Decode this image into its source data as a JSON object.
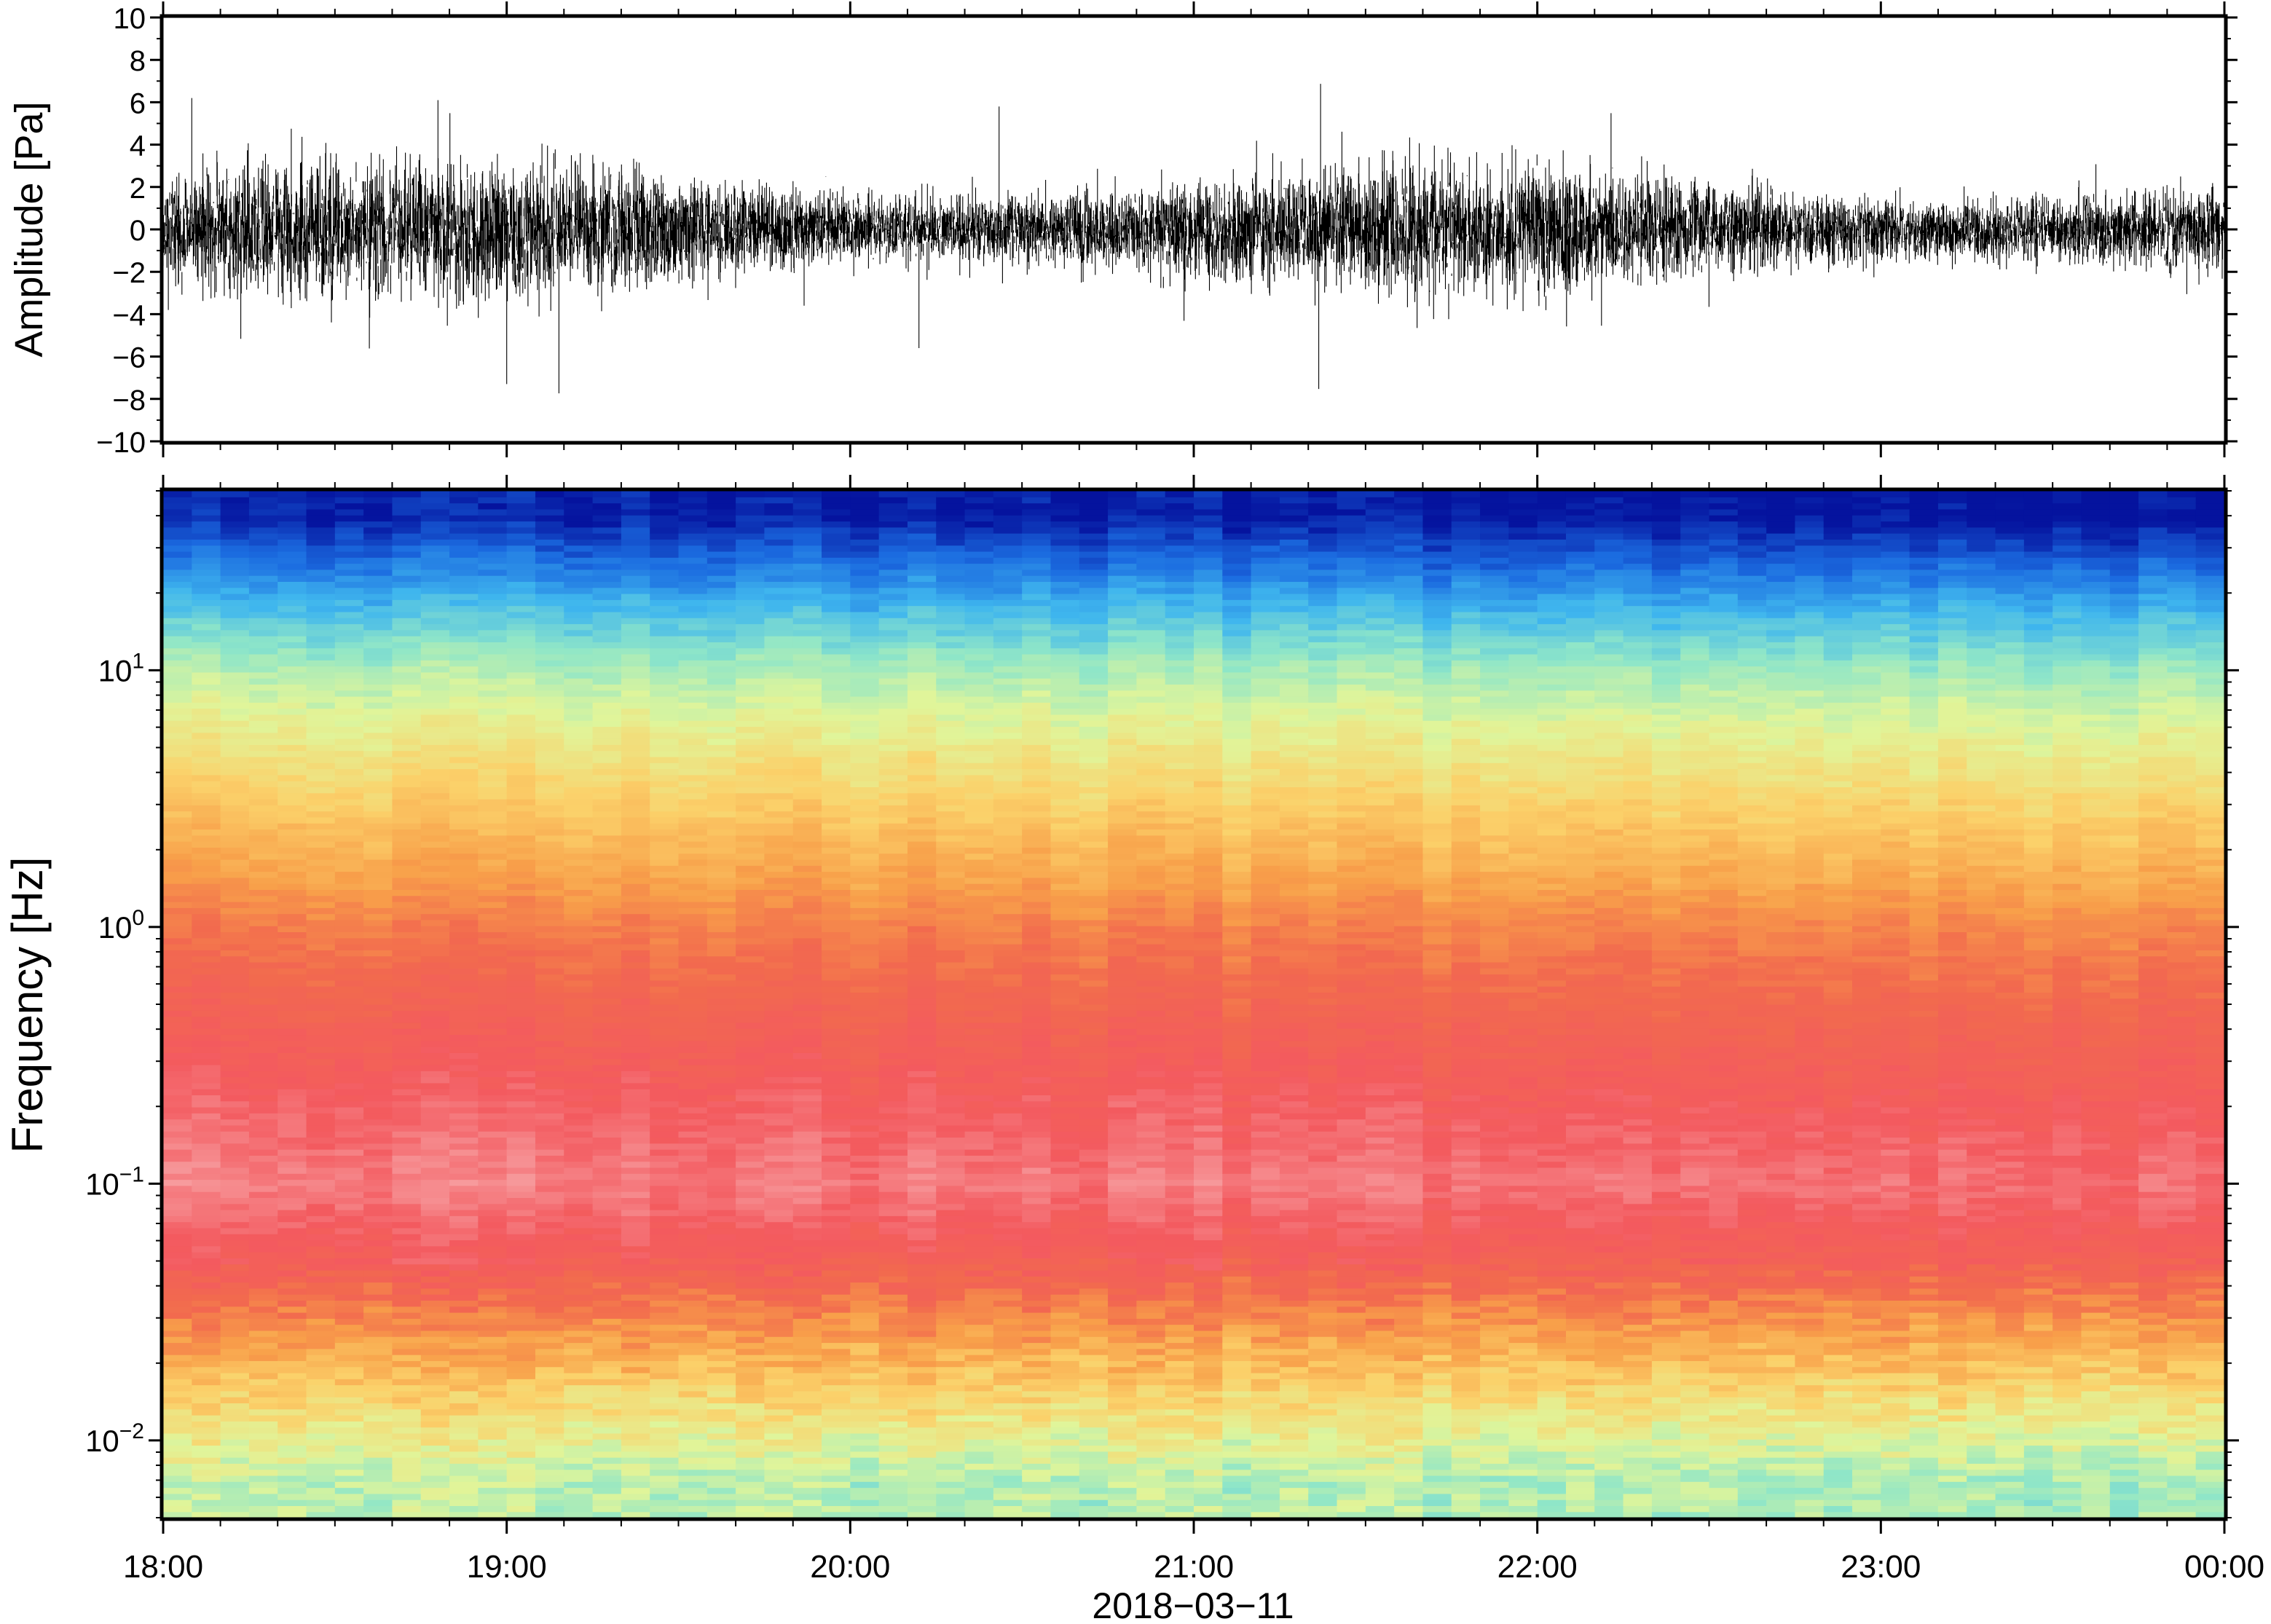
{
  "chart_data": [
    {
      "type": "line",
      "ylabel": "Amplitude [Pa]",
      "ylim": [
        -10,
        10
      ],
      "yticks": [
        -10,
        -8,
        -6,
        -4,
        -2,
        0,
        2,
        4,
        6,
        8,
        10
      ],
      "ytick_labels": [
        "−10",
        "−8",
        "−6",
        "−4",
        "−2",
        "0",
        "2",
        "4",
        "6",
        "8",
        "10"
      ],
      "x_range": [
        "2018-03-11 18:00",
        "2018-03-12 00:00"
      ],
      "series": [
        {
          "typical_envelope_pa": [
            -3,
            3
          ],
          "max_positive_pa": 6.2,
          "min_negative_pa": -7.3,
          "notable_peaks": [
            {
              "time": "18:05",
              "value": 6.2
            },
            {
              "time": "18:48",
              "value": 6.1
            },
            {
              "time": "19:00",
              "value": -7.3
            },
            {
              "time": "20:26",
              "value": 5.8
            },
            {
              "time": "20:12",
              "value": -5.6
            }
          ]
        }
      ]
    },
    {
      "type": "heatmap",
      "ylabel": "Frequency [Hz]",
      "yscale": "log",
      "ylim": [
        0.005,
        50
      ],
      "yticks": [
        0.01,
        0.1,
        1,
        10
      ],
      "ytick_labels": [
        {
          "base": "10",
          "exp": "−2"
        },
        {
          "base": "10",
          "exp": "−1"
        },
        {
          "base": "10",
          "exp": "0"
        },
        {
          "base": "10",
          "exp": "1"
        }
      ],
      "x_range": [
        "2018-03-11 18:00",
        "2018-03-12 00:00"
      ],
      "colormap_stops": [
        "#05139e",
        "#1b6be0",
        "#3fb6ee",
        "#8fe6c8",
        "#e0f59a",
        "#fbd16a",
        "#f8a04a",
        "#f26a4e",
        "#f35a5f",
        "#f7a1a3"
      ],
      "power_by_frequency": [
        {
          "freq_hz": 40,
          "level": 0.02
        },
        {
          "freq_hz": 25,
          "level": 0.14
        },
        {
          "freq_hz": 15,
          "level": 0.28
        },
        {
          "freq_hz": 10,
          "level": 0.38
        },
        {
          "freq_hz": 6,
          "level": 0.47
        },
        {
          "freq_hz": 3,
          "level": 0.57
        },
        {
          "freq_hz": 1.5,
          "level": 0.67
        },
        {
          "freq_hz": 1,
          "level": 0.74
        },
        {
          "freq_hz": 0.4,
          "level": 0.84
        },
        {
          "freq_hz": 0.2,
          "level": 0.9
        },
        {
          "freq_hz": 0.1,
          "level": 0.95
        },
        {
          "freq_hz": 0.05,
          "level": 0.86
        },
        {
          "freq_hz": 0.03,
          "level": 0.72
        },
        {
          "freq_hz": 0.015,
          "level": 0.55
        },
        {
          "freq_hz": 0.007,
          "level": 0.4
        }
      ]
    }
  ],
  "xaxis": {
    "ticks": [
      "18:00",
      "19:00",
      "20:00",
      "21:00",
      "22:00",
      "23:00",
      "00:00"
    ],
    "date_label": "2018−03−11"
  }
}
